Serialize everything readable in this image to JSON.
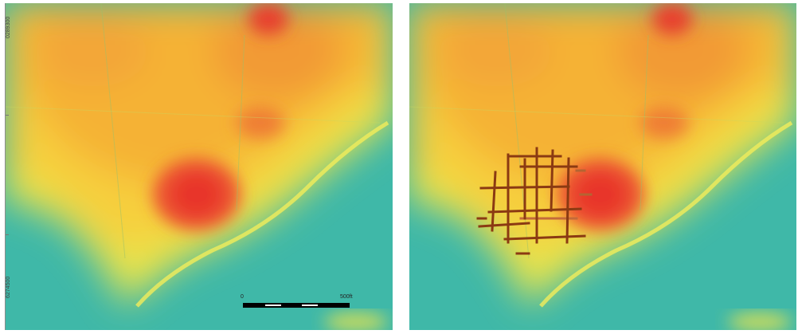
{
  "left_panel": {
    "y_labels": {
      "top": "0289300",
      "bottom": "6274500"
    },
    "scale_bar": {
      "start": "0",
      "end": "500ft"
    }
  },
  "right_panel": {
    "overlay": "street grid"
  },
  "colors": {
    "low": "#3fb8a8",
    "mid": "#f5e94a",
    "high": "#e8352b",
    "grid": "#8b3a12"
  }
}
